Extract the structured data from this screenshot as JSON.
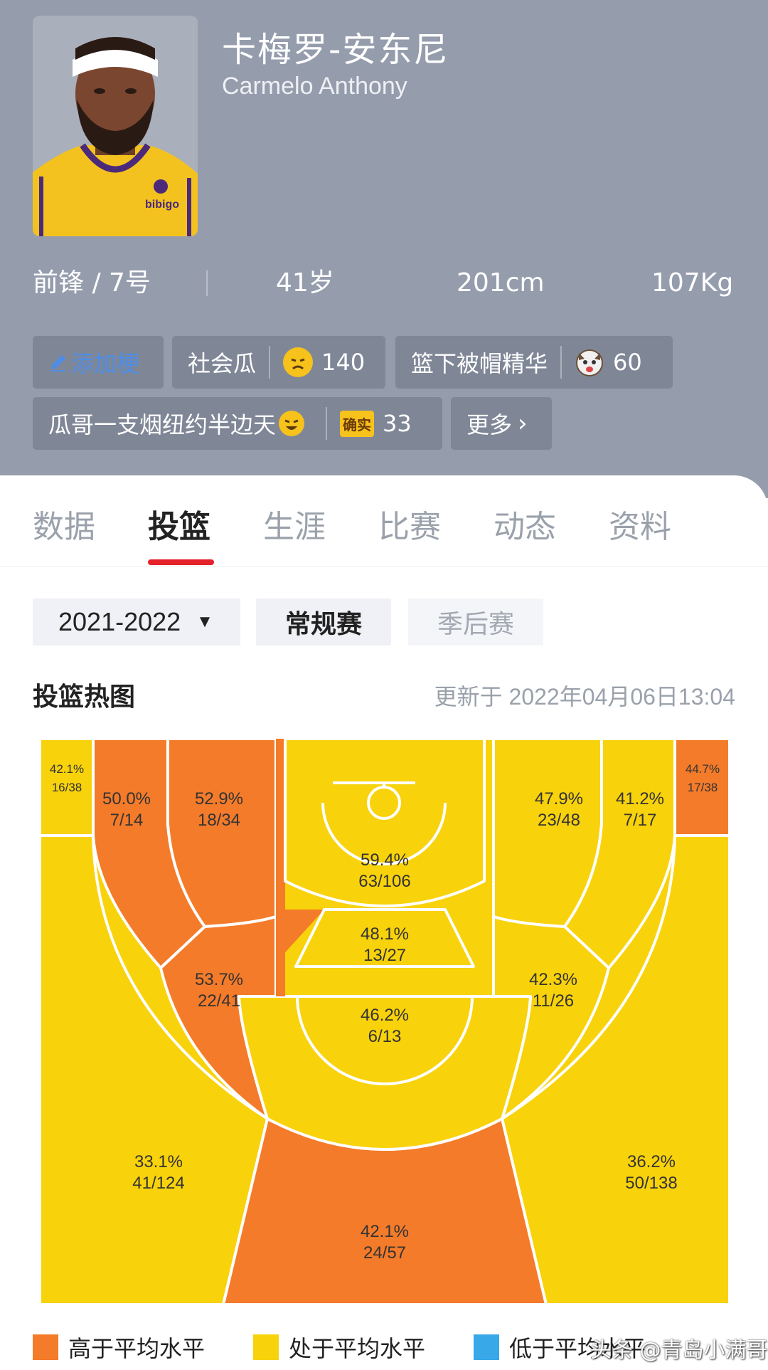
{
  "player": {
    "name_zh": "卡梅罗-安东尼",
    "name_en": "Carmelo Anthony",
    "jersey_sponsor": "bibigo"
  },
  "stats": {
    "position_number": "前锋 / 7号",
    "age": "41岁",
    "height": "201cm",
    "weight": "107Kg"
  },
  "tags": {
    "add_label": "添加梗",
    "items": [
      {
        "text": "社会瓜",
        "count": "140"
      },
      {
        "text": "篮下被帽精华",
        "count": "60"
      },
      {
        "text": "瓜哥一支烟纽约半边天",
        "badge": "确实",
        "count": "33"
      }
    ],
    "more_label": "更多"
  },
  "tabs": [
    "数据",
    "投篮",
    "生涯",
    "比赛",
    "动态",
    "资料"
  ],
  "active_tab": "投篮",
  "filters": {
    "season": "2021-2022",
    "regular": "常规赛",
    "playoff": "季后赛"
  },
  "chart_section": {
    "title": "投篮热图",
    "updated": "更新于 2022年04月06日13:04"
  },
  "colors": {
    "above_average": "#f47b2a",
    "average": "#f8d20b",
    "below_average": "#38a8e8",
    "header_bg": "#959dad",
    "tab_accent": "#e5212a"
  },
  "chart_data": {
    "type": "heatmap",
    "zones": [
      {
        "zone": "left-corner-3",
        "pct": "42.1%",
        "made_att": "16/38",
        "level": "average"
      },
      {
        "zone": "left-baseline-mid",
        "pct": "50.0%",
        "made_att": "7/14",
        "level": "above"
      },
      {
        "zone": "left-short-mid",
        "pct": "52.9%",
        "made_att": "18/34",
        "level": "above"
      },
      {
        "zone": "restricted-area",
        "pct": "59.4%",
        "made_att": "63/106",
        "level": "average"
      },
      {
        "zone": "right-short-mid",
        "pct": "47.9%",
        "made_att": "23/48",
        "level": "average"
      },
      {
        "zone": "right-baseline-mid",
        "pct": "41.2%",
        "made_att": "7/17",
        "level": "average"
      },
      {
        "zone": "right-corner-3",
        "pct": "44.7%",
        "made_att": "17/38",
        "level": "above"
      },
      {
        "zone": "paint-non-ra",
        "pct": "48.1%",
        "made_att": "13/27",
        "level": "average"
      },
      {
        "zone": "left-elbow-mid",
        "pct": "53.7%",
        "made_att": "22/41",
        "level": "above"
      },
      {
        "zone": "right-elbow-mid",
        "pct": "42.3%",
        "made_att": "11/26",
        "level": "average"
      },
      {
        "zone": "top-key-mid",
        "pct": "46.2%",
        "made_att": "6/13",
        "level": "average"
      },
      {
        "zone": "left-wing-3",
        "pct": "33.1%",
        "made_att": "41/124",
        "level": "average"
      },
      {
        "zone": "right-wing-3",
        "pct": "36.2%",
        "made_att": "50/138",
        "level": "average"
      },
      {
        "zone": "top-3",
        "pct": "42.1%",
        "made_att": "24/57",
        "level": "above"
      }
    ],
    "legend": [
      {
        "label": "高于平均水平",
        "color": "#f47b2a"
      },
      {
        "label": "处于平均水平",
        "color": "#f8d20b"
      },
      {
        "label": "低于平均水平",
        "color": "#38a8e8"
      }
    ]
  },
  "watermark": "头条 @青岛小满哥"
}
